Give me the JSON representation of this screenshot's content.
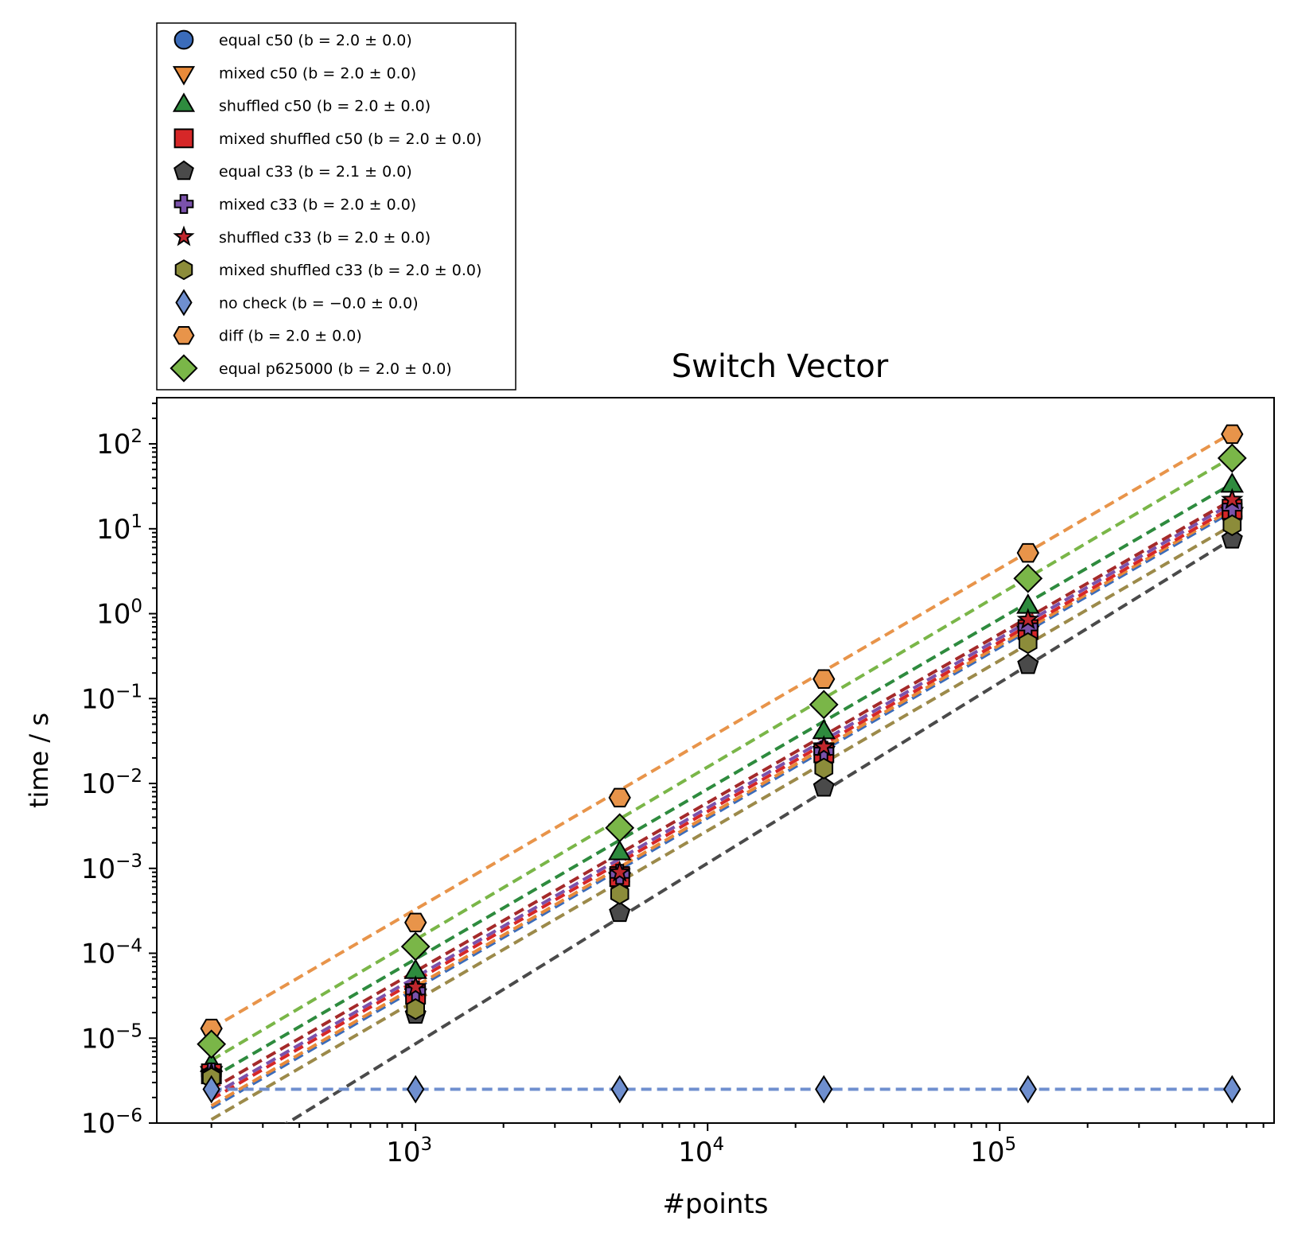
{
  "chart_data": {
    "type": "scatter",
    "title": "Switch Vector",
    "xlabel": "#points",
    "ylabel": "time / s",
    "xscale": "log",
    "yscale": "log",
    "xlim": [
      130,
      870000
    ],
    "ylim": [
      1e-06,
      350
    ],
    "x_ticks": [
      {
        "value": 1000,
        "base": "10",
        "exp": "3"
      },
      {
        "value": 10000,
        "base": "10",
        "exp": "4"
      },
      {
        "value": 100000,
        "base": "10",
        "exp": "5"
      }
    ],
    "y_ticks": [
      {
        "value": 1e-06,
        "base": "10",
        "exp": "−6"
      },
      {
        "value": 1e-05,
        "base": "10",
        "exp": "−5"
      },
      {
        "value": 0.0001,
        "base": "10",
        "exp": "−4"
      },
      {
        "value": 0.001,
        "base": "10",
        "exp": "−3"
      },
      {
        "value": 0.01,
        "base": "10",
        "exp": "−2"
      },
      {
        "value": 0.1,
        "base": "10",
        "exp": "−1"
      },
      {
        "value": 1,
        "base": "10",
        "exp": "0"
      },
      {
        "value": 10,
        "base": "10",
        "exp": "1"
      },
      {
        "value": 100,
        "base": "10",
        "exp": "2"
      }
    ],
    "grid": false,
    "legend_position": "above-left",
    "x": [
      200,
      1000,
      5000,
      25000,
      125000,
      625000
    ],
    "series": [
      {
        "name": "equal c50",
        "b_text": "(b = 2.0 ± 0.0)",
        "marker": "circle",
        "color": "#3b6cba",
        "fit_color": "#3b6cba",
        "values": [
          3.8e-06,
          3e-05,
          0.0007,
          0.022,
          0.55,
          14
        ],
        "fit": [
          1.5e-06,
          16
        ]
      },
      {
        "name": "mixed c50",
        "b_text": "(b = 2.0 ± 0.0)",
        "marker": "triangle-down",
        "color": "#e88a3a",
        "fit_color": "#e88a3a",
        "values": [
          3.9e-06,
          3.2e-05,
          0.00075,
          0.023,
          0.6,
          15
        ],
        "fit": [
          1.6e-06,
          17
        ]
      },
      {
        "name": "shuffled c50",
        "b_text": "(b = 2.0 ± 0.0)",
        "marker": "triangle-up",
        "color": "#2e8b3e",
        "fit_color": "#2e8b3e",
        "values": [
          4.8e-06,
          6e-05,
          0.0015,
          0.04,
          1.2,
          32
        ],
        "fit": [
          3.4e-06,
          34
        ]
      },
      {
        "name": "mixed shuffled c50",
        "b_text": "(b = 2.0 ± 0.0)",
        "marker": "square",
        "color": "#d62728",
        "fit_color": "#d62728",
        "values": [
          3.8e-06,
          3.3e-05,
          0.0008,
          0.023,
          0.65,
          17
        ],
        "fit": [
          1.9e-06,
          18
        ]
      },
      {
        "name": "equal c33",
        "b_text": "(b = 2.1 ± 0.0)",
        "marker": "pentagon",
        "color": "#4a4a4a",
        "fit_color": "#4a4a4a",
        "values": [
          3.7e-06,
          1.9e-05,
          0.0003,
          0.009,
          0.25,
          7.5
        ],
        "fit": [
          2.8e-07,
          7.6
        ]
      },
      {
        "name": "mixed c33",
        "b_text": "(b = 2.0 ± 0.0)",
        "marker": "plus",
        "color": "#7b52ab",
        "fit_color": "#7b52ab",
        "values": [
          3.9e-06,
          3.6e-05,
          0.00085,
          0.024,
          0.7,
          18
        ],
        "fit": [
          2.1e-06,
          20
        ]
      },
      {
        "name": "shuffled c33",
        "b_text": "(b = 2.0 ± 0.0)",
        "marker": "star",
        "color": "#c0272d",
        "fit_color": "#a52a2a",
        "values": [
          3.8e-06,
          4e-05,
          0.0009,
          0.027,
          0.85,
          22
        ],
        "fit": [
          2.5e-06,
          22
        ]
      },
      {
        "name": "mixed shuffled c33",
        "b_text": "(b = 2.0 ± 0.0)",
        "marker": "hexagon",
        "color": "#8c8c3a",
        "fit_color": "#9c8a4a",
        "values": [
          3.4e-06,
          2.2e-05,
          0.0005,
          0.015,
          0.45,
          11
        ],
        "fit": [
          1.1e-06,
          11
        ]
      },
      {
        "name": "no check",
        "b_text": "(b = −0.0 ± 0.0)",
        "marker": "thin-diamond",
        "color": "#6f8fcf",
        "fit_color": "#6f8fcf",
        "values": [
          2.5e-06,
          2.5e-06,
          2.5e-06,
          2.5e-06,
          2.5e-06,
          2.5e-06
        ],
        "fit": [
          2.5e-06,
          2.5e-06
        ]
      },
      {
        "name": "diff",
        "b_text": "(b = 2.0 ± 0.0)",
        "marker": "hexagon-flat",
        "color": "#e8944a",
        "fit_color": "#e8944a",
        "values": [
          1.3e-05,
          0.00023,
          0.0068,
          0.17,
          5.2,
          130
        ],
        "fit": [
          1.3e-05,
          135
        ]
      },
      {
        "name": "equal p625000",
        "b_text": "(b = 2.0 ± 0.0)",
        "marker": "diamond",
        "color": "#7ab648",
        "fit_color": "#7ab648",
        "values": [
          8.5e-06,
          0.00012,
          0.003,
          0.085,
          2.6,
          68
        ],
        "fit": [
          5.5e-06,
          70
        ]
      }
    ]
  }
}
